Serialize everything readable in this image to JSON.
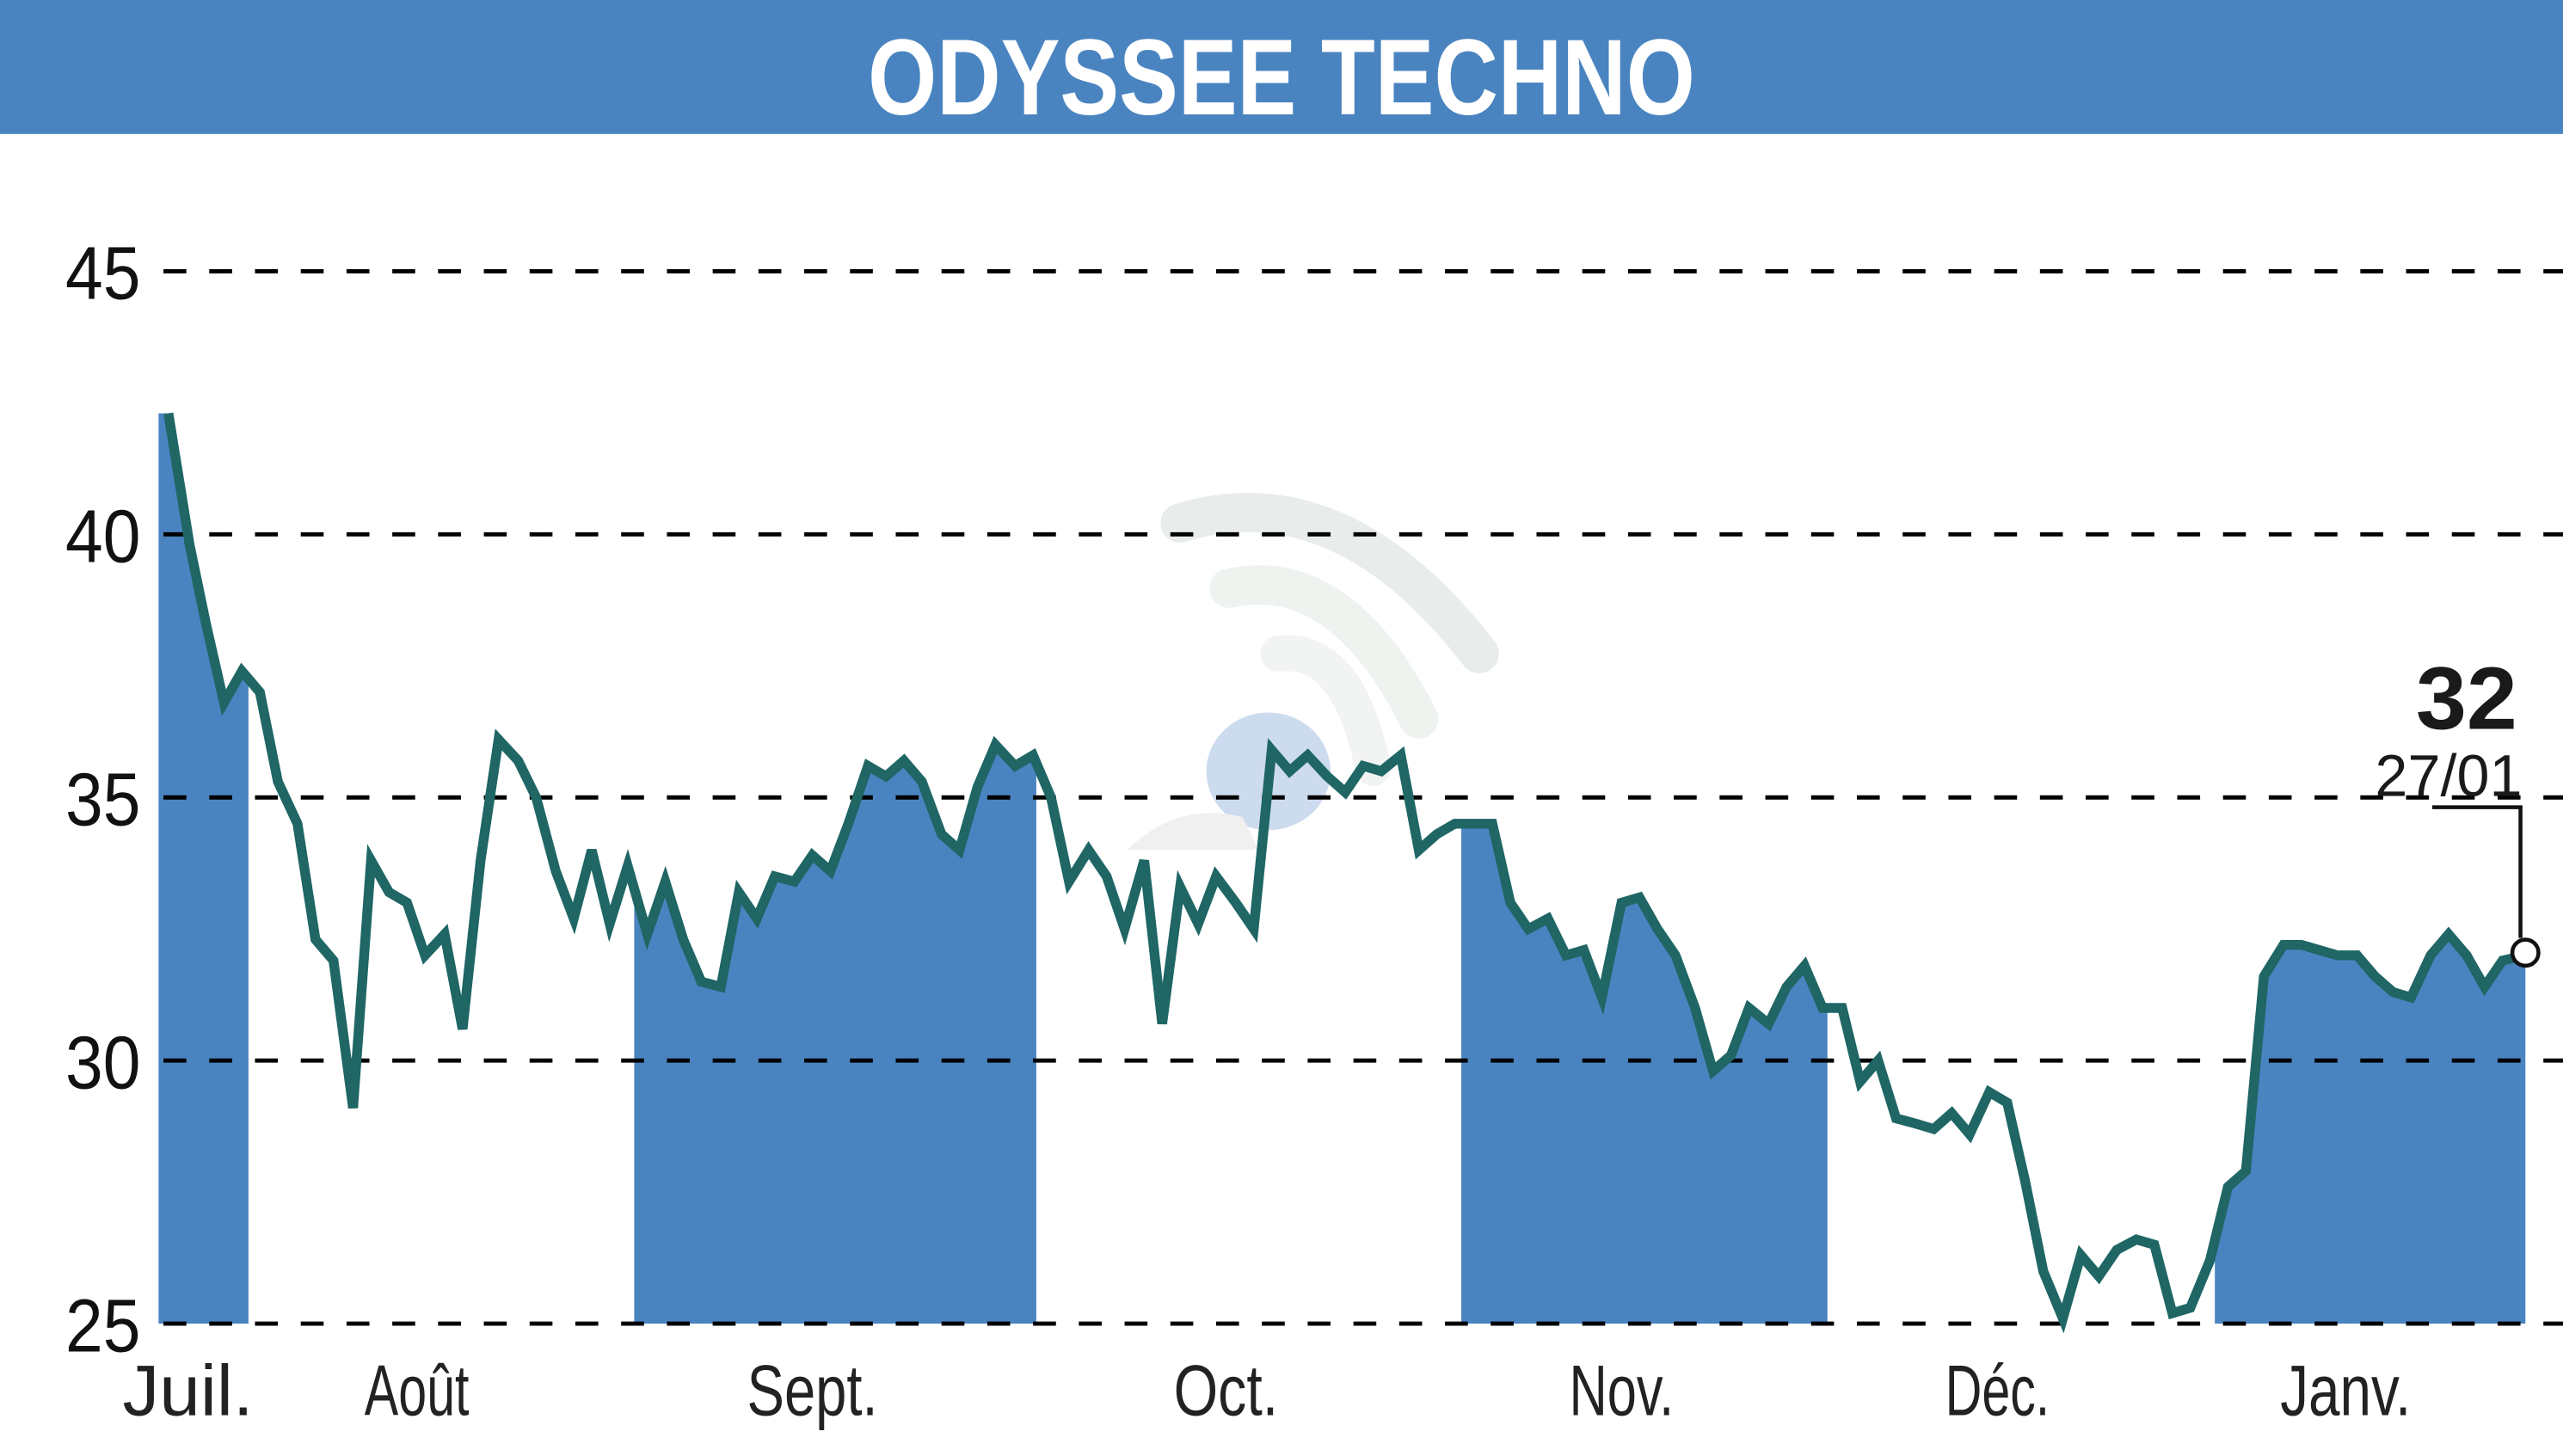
{
  "header": {
    "title": "ODYSSEE TECHNO",
    "background": "#4A84C0"
  },
  "colors": {
    "line": "#1F6665",
    "fill": "#4A84C0",
    "grid": "#000000"
  },
  "last": {
    "value": "32",
    "date": "27/01"
  },
  "watermark": {
    "icon": "signal-watermark-icon"
  },
  "chart_data": {
    "type": "line",
    "title": "ODYSSEE TECHNO",
    "xlabel": "",
    "ylabel": "",
    "ylim": [
      25,
      45
    ],
    "yticks": [
      25,
      30,
      35,
      40,
      45
    ],
    "grid": true,
    "legend": "none",
    "months": [
      {
        "label": "Juil.",
        "x": 115,
        "band": [
          97,
          152
        ]
      },
      {
        "label": "Août",
        "x": 255,
        "band": null
      },
      {
        "label": "Sept.",
        "x": 497,
        "band": [
          388,
          634
        ]
      },
      {
        "label": "Oct.",
        "x": 750,
        "band": null
      },
      {
        "label": "Nov.",
        "x": 992,
        "band": [
          894,
          1118
        ]
      },
      {
        "label": "Déc.",
        "x": 1222,
        "band": null
      },
      {
        "label": "Janv.",
        "x": 1435,
        "band": [
          1355,
          1545
        ]
      }
    ],
    "annotation": {
      "text": "32",
      "sub": "27/01",
      "x": 1545,
      "value": 32.0
    },
    "points": [
      [
        103,
        42.3
      ],
      [
        116,
        39.8
      ],
      [
        126,
        38.3
      ],
      [
        137,
        36.8
      ],
      [
        148,
        37.4
      ],
      [
        159,
        37.0
      ],
      [
        170,
        35.3
      ],
      [
        182,
        34.5
      ],
      [
        193,
        32.3
      ],
      [
        204,
        31.9
      ],
      [
        216,
        29.1
      ],
      [
        227,
        33.8
      ],
      [
        238,
        33.2
      ],
      [
        249,
        33.0
      ],
      [
        260,
        32.0
      ],
      [
        272,
        32.4
      ],
      [
        283,
        30.6
      ],
      [
        294,
        33.8
      ],
      [
        305,
        36.1
      ],
      [
        317,
        35.7
      ],
      [
        328,
        35.0
      ],
      [
        340,
        33.6
      ],
      [
        351,
        32.7
      ],
      [
        362,
        34.0
      ],
      [
        373,
        32.6
      ],
      [
        384,
        33.7
      ],
      [
        396,
        32.4
      ],
      [
        407,
        33.4
      ],
      [
        418,
        32.3
      ],
      [
        429,
        31.5
      ],
      [
        441,
        31.4
      ],
      [
        452,
        33.2
      ],
      [
        463,
        32.7
      ],
      [
        474,
        33.5
      ],
      [
        486,
        33.4
      ],
      [
        497,
        33.9
      ],
      [
        508,
        33.6
      ],
      [
        519,
        34.5
      ],
      [
        531,
        35.6
      ],
      [
        542,
        35.4
      ],
      [
        553,
        35.7
      ],
      [
        564,
        35.3
      ],
      [
        576,
        34.3
      ],
      [
        587,
        34.0
      ],
      [
        598,
        35.2
      ],
      [
        609,
        36.0
      ],
      [
        621,
        35.6
      ],
      [
        632,
        35.8
      ],
      [
        643,
        35.0
      ],
      [
        654,
        33.4
      ],
      [
        666,
        34.0
      ],
      [
        677,
        33.5
      ],
      [
        688,
        32.5
      ],
      [
        700,
        33.8
      ],
      [
        711,
        30.7
      ],
      [
        722,
        33.3
      ],
      [
        733,
        32.6
      ],
      [
        744,
        33.5
      ],
      [
        756,
        33.0
      ],
      [
        767,
        32.5
      ],
      [
        778,
        35.9
      ],
      [
        789,
        35.5
      ],
      [
        800,
        35.8
      ],
      [
        812,
        35.4
      ],
      [
        823,
        35.1
      ],
      [
        834,
        35.6
      ],
      [
        845,
        35.5
      ],
      [
        857,
        35.8
      ],
      [
        868,
        34.0
      ],
      [
        879,
        34.3
      ],
      [
        890,
        34.5
      ],
      [
        902,
        34.5
      ],
      [
        913,
        34.5
      ],
      [
        924,
        33.0
      ],
      [
        935,
        32.5
      ],
      [
        947,
        32.7
      ],
      [
        958,
        32.0
      ],
      [
        969,
        32.1
      ],
      [
        980,
        31.2
      ],
      [
        992,
        33.0
      ],
      [
        1003,
        33.1
      ],
      [
        1014,
        32.5
      ],
      [
        1025,
        32.0
      ],
      [
        1037,
        31.0
      ],
      [
        1048,
        29.8
      ],
      [
        1059,
        30.1
      ],
      [
        1070,
        31.0
      ],
      [
        1082,
        30.7
      ],
      [
        1093,
        31.4
      ],
      [
        1104,
        31.8
      ],
      [
        1115,
        31.0
      ],
      [
        1127,
        31.0
      ],
      [
        1138,
        29.6
      ],
      [
        1149,
        30.0
      ],
      [
        1160,
        28.9
      ],
      [
        1172,
        28.8
      ],
      [
        1183,
        28.7
      ],
      [
        1194,
        29.0
      ],
      [
        1205,
        28.6
      ],
      [
        1217,
        29.4
      ],
      [
        1228,
        29.2
      ],
      [
        1239,
        27.7
      ],
      [
        1250,
        26.0
      ],
      [
        1262,
        25.1
      ],
      [
        1273,
        26.3
      ],
      [
        1284,
        25.9
      ],
      [
        1295,
        26.4
      ],
      [
        1307,
        26.6
      ],
      [
        1318,
        26.5
      ],
      [
        1329,
        25.2
      ],
      [
        1340,
        25.3
      ],
      [
        1352,
        26.2
      ],
      [
        1363,
        27.6
      ],
      [
        1374,
        27.9
      ],
      [
        1385,
        31.6
      ],
      [
        1397,
        32.2
      ],
      [
        1408,
        32.2
      ],
      [
        1419,
        32.1
      ],
      [
        1430,
        32.0
      ],
      [
        1442,
        32.0
      ],
      [
        1453,
        31.6
      ],
      [
        1464,
        31.3
      ],
      [
        1475,
        31.2
      ],
      [
        1487,
        32.0
      ],
      [
        1498,
        32.4
      ],
      [
        1509,
        32.0
      ],
      [
        1520,
        31.4
      ],
      [
        1531,
        31.9
      ],
      [
        1545,
        32.0
      ]
    ]
  }
}
